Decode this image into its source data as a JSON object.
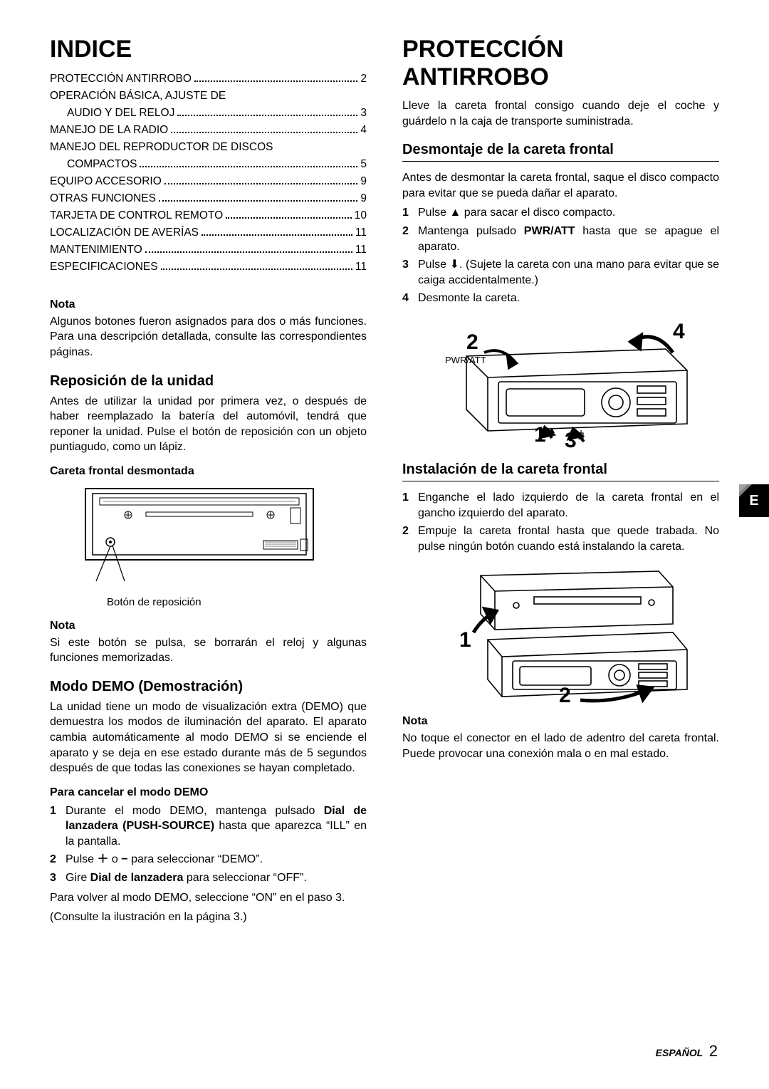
{
  "left": {
    "indice_title": "INDICE",
    "toc": [
      {
        "label": "PROTECCIÓN ANTIRROBO",
        "page": "2",
        "indent": false
      },
      {
        "label": "OPERACIÓN BÁSICA, AJUSTE DE",
        "page": "",
        "indent": false,
        "nopage": true
      },
      {
        "label": "AUDIO Y DEL RELOJ",
        "page": "3",
        "indent": true
      },
      {
        "label": "MANEJO DE LA RADIO",
        "page": "4",
        "indent": false
      },
      {
        "label": "MANEJO DEL REPRODUCTOR DE DISCOS",
        "page": "",
        "indent": false,
        "nopage": true
      },
      {
        "label": "COMPACTOS",
        "page": "5",
        "indent": true
      },
      {
        "label": "EQUIPO ACCESORIO",
        "page": "9",
        "indent": false
      },
      {
        "label": "OTRAS FUNCIONES",
        "page": "9",
        "indent": false
      },
      {
        "label": "TARJETA DE CONTROL REMOTO",
        "page": "10",
        "indent": false
      },
      {
        "label": "LOCALIZACIÓN DE AVERÍAS",
        "page": "11",
        "indent": false
      },
      {
        "label": "MANTENIMIENTO",
        "page": "11",
        "indent": false
      },
      {
        "label": "ESPECIFICACIONES",
        "page": "11",
        "indent": false
      }
    ],
    "nota1_label": "Nota",
    "nota1_text": "Algunos botones fueron asignados para dos o más funciones. Para una descripción detallada, consulte las correspondientes páginas.",
    "reposicion_h": "Reposición de la unidad",
    "reposicion_p": "Antes de utilizar la unidad por primera vez, o después de haber reemplazado la batería del automóvil, tendrá que reponer la unidad.  Pulse el botón de reposición con un objeto puntiagudo, como un lápiz.",
    "careta_h": "Careta frontal desmontada",
    "fig1_caption": "Botón de reposición",
    "nota2_label": "Nota",
    "nota2_text": "Si este botón se pulsa, se borrarán el reloj y algunas funciones memorizadas.",
    "demo_h": "Modo DEMO (Demostración)",
    "demo_p": "La unidad tiene un modo de visualización extra (DEMO) que demuestra los modos de iluminación del aparato. El aparato cambia automáticamente al modo DEMO si se enciende el aparato y se deja en ese estado durante más de 5 segundos después de que todas las conexiones se hayan completado.",
    "cancel_h": "Para cancelar el modo DEMO",
    "cancel_steps": [
      "Durante el modo DEMO, mantenga pulsado <b>Dial de lanzadera (PUSH-SOURCE)</b> hasta que aparezca “ILL” en la pantalla.",
      "Pulse <b>＋</b> o <b>−</b> para seleccionar “DEMO”.",
      "Gire <b>Dial de lanzadera</b> para seleccionar “OFF”."
    ],
    "cancel_after1": "Para volver al modo DEMO, seleccione “ON” en el paso 3.",
    "cancel_after2": "(Consulte la ilustración en la página 3.)"
  },
  "right": {
    "title1": "PROTECCIÓN",
    "title2": "ANTIRROBO",
    "intro": "Lleve la careta frontal consigo cuando deje el coche y guárdelo n la caja de transporte suministrada.",
    "desmont_h": "Desmontaje de la careta frontal",
    "desmont_p": "Antes de desmontar la careta frontal, saque el disco compacto para evitar que se pueda dañar el aparato.",
    "desmont_steps": [
      "Pulse ▲ para sacar el disco compacto.",
      "Mantenga pulsado <b>PWR/ATT</b> hasta que se apague el aparato.",
      "Pulse ⬇. (Sujete la careta con una mano para evitar que se caiga accidentalmente.)",
      "Desmonte la careta."
    ],
    "fig2_labels": {
      "l1": "1",
      "l2": "2",
      "l3": "3",
      "l4": "4",
      "pwr": "PWR/ATT"
    },
    "instal_h": "Instalación de la careta frontal",
    "instal_steps": [
      "Enganche el lado izquierdo de la careta frontal en el gancho izquierdo del aparato.",
      "Empuje la careta frontal hasta que quede trabada. No pulse ningún botón cuando está instalando la careta."
    ],
    "fig3_labels": {
      "l1": "1",
      "l2": "2"
    },
    "nota3_label": "Nota",
    "nota3_text": "No toque el conector en el lado de adentro del careta frontal. Puede provocar una conexión mala o en mal estado."
  },
  "tab": "E",
  "footer_lang": "ESPAÑOL",
  "footer_page": "2"
}
